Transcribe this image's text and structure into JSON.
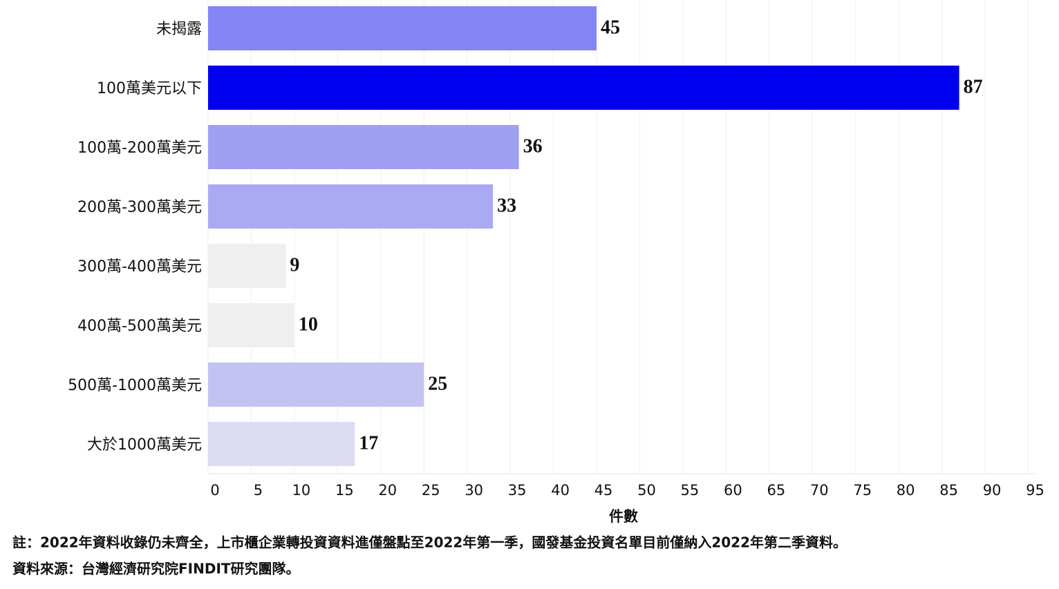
{
  "chart_data": {
    "type": "bar",
    "orientation": "horizontal",
    "categories": [
      "未揭露",
      "100萬美元以下",
      "100萬-200萬美元",
      "200萬-300萬美元",
      "300萬-400萬美元",
      "400萬-500萬美元",
      "500萬-1000萬美元",
      "大於1000萬美元"
    ],
    "values": [
      45,
      87,
      36,
      33,
      9,
      10,
      25,
      17
    ],
    "colors": [
      "#8585f6",
      "#0000f0",
      "#a0a0f3",
      "#aaaaf3",
      "#efefef",
      "#efefef",
      "#c3c3f3",
      "#dcdcf3"
    ],
    "xlim": [
      0,
      96
    ],
    "xticks": [
      0,
      5,
      10,
      15,
      20,
      25,
      30,
      35,
      40,
      45,
      50,
      55,
      60,
      65,
      70,
      75,
      80,
      85,
      90,
      95
    ],
    "x_label": "件數",
    "grid": true,
    "notes": [
      "註：2022年資料收錄仍未齊全，上市櫃企業轉投資資料進僅盤點至2022年第一季，國發基金投資名單目前僅納入2022年第二季資料。",
      "資料來源：台灣經濟研究院FINDIT研究團隊。"
    ]
  }
}
